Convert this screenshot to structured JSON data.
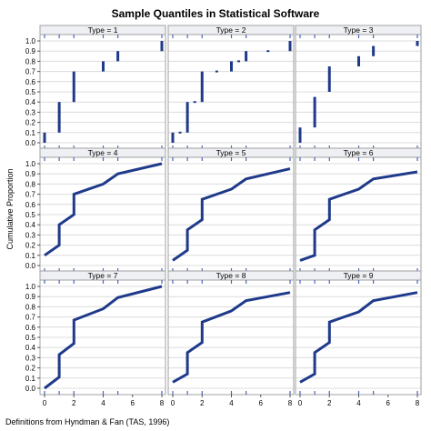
{
  "title": "Sample Quantiles in Statistical Software",
  "ylabel": "Cumulative Proportion",
  "footnote": "Definitions from Hyndman & Fan (TAS, 1996)",
  "colors": {
    "series": "#1f3a8a",
    "grid": "#dcdcdc",
    "strip": "#eef0f3",
    "frame": "#a0a0a0",
    "rug": "#4a63b8"
  },
  "chart_data": [
    {
      "type": "step",
      "panel": "Type = 1",
      "kind": "segments",
      "xlim": [
        0,
        8
      ],
      "ylim": [
        0,
        1
      ],
      "segments": [
        [
          0,
          0,
          0.1
        ],
        [
          1,
          0.1,
          0.4
        ],
        [
          2,
          0.4,
          0.7
        ],
        [
          4,
          0.7,
          0.8
        ],
        [
          5,
          0.8,
          0.9
        ],
        [
          8,
          0.9,
          1.0
        ]
      ]
    },
    {
      "type": "step",
      "panel": "Type = 2",
      "kind": "segments",
      "xlim": [
        0,
        8
      ],
      "ylim": [
        0,
        1
      ],
      "segments": [
        [
          0,
          0,
          0.1
        ],
        [
          0.5,
          0.1,
          0.1
        ],
        [
          1,
          0.1,
          0.4
        ],
        [
          1.5,
          0.4,
          0.4
        ],
        [
          2,
          0.4,
          0.7
        ],
        [
          3,
          0.7,
          0.7
        ],
        [
          4,
          0.7,
          0.8
        ],
        [
          4.5,
          0.8,
          0.8
        ],
        [
          5,
          0.8,
          0.9
        ],
        [
          6.5,
          0.9,
          0.9
        ],
        [
          8,
          0.9,
          1.0
        ]
      ]
    },
    {
      "type": "step",
      "panel": "Type = 3",
      "kind": "segments",
      "xlim": [
        0,
        8
      ],
      "ylim": [
        0,
        1
      ],
      "segments": [
        [
          0,
          0,
          0.15
        ],
        [
          1,
          0.15,
          0.45
        ],
        [
          2,
          0.5,
          0.75
        ],
        [
          4,
          0.75,
          0.85
        ],
        [
          5,
          0.85,
          0.95
        ],
        [
          8,
          0.95,
          1.0
        ]
      ]
    },
    {
      "type": "line",
      "panel": "Type = 4",
      "kind": "line",
      "xlim": [
        0,
        8
      ],
      "ylim": [
        0,
        1
      ],
      "points": [
        [
          0,
          0.1
        ],
        [
          1,
          0.2
        ],
        [
          1,
          0.4
        ],
        [
          2,
          0.5
        ],
        [
          2,
          0.7
        ],
        [
          4,
          0.8
        ],
        [
          5,
          0.9
        ],
        [
          8,
          1.0
        ]
      ]
    },
    {
      "type": "line",
      "panel": "Type = 5",
      "kind": "line",
      "xlim": [
        0,
        8
      ],
      "ylim": [
        0,
        1
      ],
      "points": [
        [
          0,
          0.05
        ],
        [
          1,
          0.15
        ],
        [
          1,
          0.35
        ],
        [
          2,
          0.45
        ],
        [
          2,
          0.65
        ],
        [
          4,
          0.75
        ],
        [
          5,
          0.85
        ],
        [
          8,
          0.95
        ]
      ]
    },
    {
      "type": "line",
      "panel": "Type = 6",
      "kind": "line",
      "xlim": [
        0,
        8
      ],
      "ylim": [
        0,
        1
      ],
      "points": [
        [
          0,
          0.05
        ],
        [
          1,
          0.1
        ],
        [
          1,
          0.35
        ],
        [
          2,
          0.45
        ],
        [
          2,
          0.65
        ],
        [
          4,
          0.75
        ],
        [
          5,
          0.85
        ],
        [
          8,
          0.92
        ]
      ]
    },
    {
      "type": "line",
      "panel": "Type = 7",
      "kind": "line",
      "xlim": [
        0,
        8
      ],
      "ylim": [
        0,
        1
      ],
      "points": [
        [
          0,
          0
        ],
        [
          1,
          0.11
        ],
        [
          1,
          0.33
        ],
        [
          2,
          0.44
        ],
        [
          2,
          0.67
        ],
        [
          4,
          0.78
        ],
        [
          5,
          0.89
        ],
        [
          8,
          1.0
        ]
      ]
    },
    {
      "type": "line",
      "panel": "Type = 8",
      "kind": "line",
      "xlim": [
        0,
        8
      ],
      "ylim": [
        0,
        1
      ],
      "points": [
        [
          0,
          0.06
        ],
        [
          1,
          0.14
        ],
        [
          1,
          0.35
        ],
        [
          2,
          0.45
        ],
        [
          2,
          0.65
        ],
        [
          4,
          0.76
        ],
        [
          5,
          0.86
        ],
        [
          8,
          0.94
        ]
      ]
    },
    {
      "type": "line",
      "panel": "Type = 9",
      "kind": "line",
      "xlim": [
        0,
        8
      ],
      "ylim": [
        0,
        1
      ],
      "points": [
        [
          0,
          0.06
        ],
        [
          1,
          0.14
        ],
        [
          1,
          0.35
        ],
        [
          2,
          0.45
        ],
        [
          2,
          0.65
        ],
        [
          4,
          0.75
        ],
        [
          5,
          0.86
        ],
        [
          8,
          0.94
        ]
      ]
    }
  ],
  "rug_x": [
    0,
    1,
    2,
    4,
    5,
    8
  ],
  "x_ticks": [
    0,
    2,
    4,
    6,
    8
  ],
  "y_ticks": [
    "0.0",
    "0.1",
    "0.2",
    "0.3",
    "0.4",
    "0.5",
    "0.6",
    "0.7",
    "0.8",
    "0.9",
    "1.0"
  ]
}
